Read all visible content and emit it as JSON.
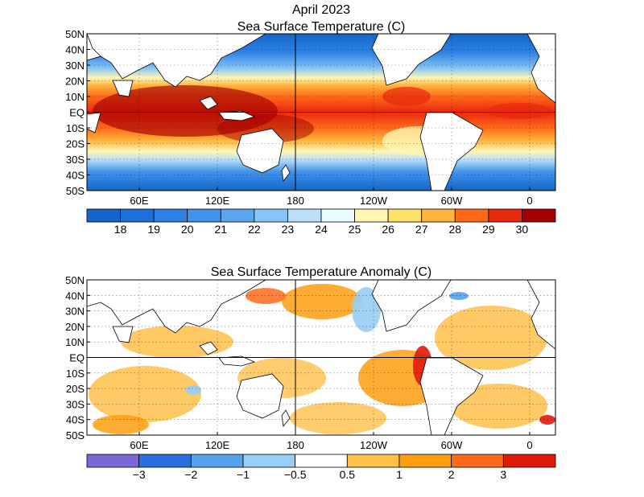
{
  "title_line1": "April 2023",
  "maps": [
    {
      "id": "sst",
      "title": "Sea Surface Temperature (C)",
      "lat_labels": [
        "50N",
        "40N",
        "30N",
        "20N",
        "10N",
        "EQ",
        "10S",
        "20S",
        "30S",
        "40S",
        "50S"
      ],
      "lon_labels": [
        "60E",
        "120E",
        "180",
        "120W",
        "60W",
        "0"
      ],
      "colorbar": {
        "colors": [
          "#1565c8",
          "#1e70d8",
          "#2e82e4",
          "#4294ea",
          "#5aa6ee",
          "#88c4f5",
          "#bde0fa",
          "#e9fbff",
          "#fff6b4",
          "#ffe06a",
          "#ffb43c",
          "#ff6a1a",
          "#e8280e",
          "#a40000"
        ],
        "labels": [
          "18",
          "19",
          "20",
          "21",
          "22",
          "23",
          "24",
          "25",
          "26",
          "27",
          "28",
          "29",
          "30"
        ]
      }
    },
    {
      "id": "anom",
      "title": "Sea Surface Temperature Anomaly (C)",
      "lat_labels": [
        "50N",
        "40N",
        "30N",
        "20N",
        "10N",
        "EQ",
        "10S",
        "20S",
        "30S",
        "40S",
        "50S"
      ],
      "lon_labels": [
        "60E",
        "120E",
        "180",
        "120W",
        "60W",
        "0"
      ],
      "colorbar": {
        "colors": [
          "#7b68d8",
          "#2a6fe0",
          "#56a2ec",
          "#98cdf5",
          "#ffffff",
          "#ffc14a",
          "#ff9d12",
          "#ff6a1a",
          "#e01a0a"
        ],
        "labels": [
          "−3",
          "−2",
          "−1",
          "−0.5",
          "0.5",
          "1",
          "2",
          "3"
        ]
      }
    }
  ]
}
